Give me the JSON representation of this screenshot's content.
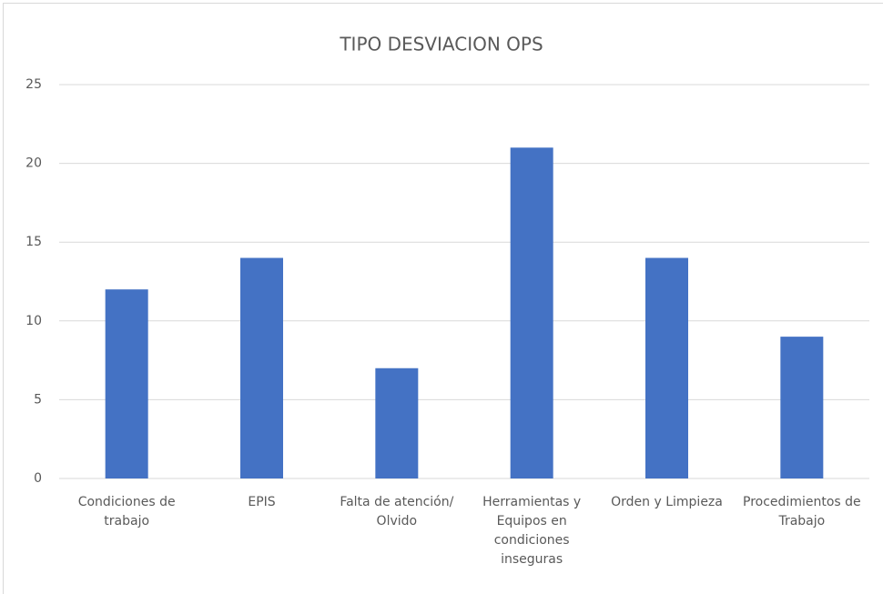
{
  "chart_data": {
    "type": "bar",
    "title": "TIPO DESVIACION OPS",
    "categories": [
      "Condiciones de trabajo",
      "EPIS",
      "Falta de atención/ Olvido",
      "Herramientas y Equipos en condiciones inseguras",
      "Orden y Limpieza",
      "Procedimientos de Trabajo"
    ],
    "values": [
      12,
      14,
      7,
      21,
      14,
      9
    ],
    "color": "#4472c4",
    "ylim": [
      0,
      25
    ],
    "yticks": [
      0,
      5,
      10,
      15,
      20,
      25
    ],
    "grid": true
  }
}
